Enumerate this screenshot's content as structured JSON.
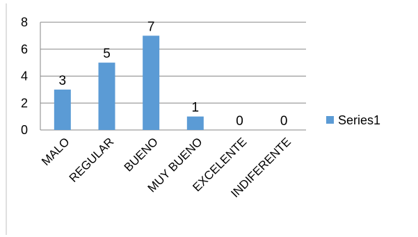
{
  "chart_data": {
    "type": "bar",
    "categories": [
      "MALO",
      "REGULAR",
      "BUENO",
      "MUY BUENO",
      "EXCELENTE",
      "INDIFERENTE"
    ],
    "series": [
      {
        "name": "Series1",
        "values": [
          3,
          5,
          7,
          1,
          0,
          0
        ],
        "color": "#5b9bd5"
      }
    ],
    "ylim": [
      0,
      8
    ],
    "yticks": [
      0,
      2,
      4,
      6,
      8
    ],
    "data_labels": [
      "3",
      "5",
      "7",
      "1",
      "0",
      "0"
    ],
    "grid": true,
    "legend_position": "right",
    "title": "",
    "xlabel": "",
    "ylabel": ""
  }
}
